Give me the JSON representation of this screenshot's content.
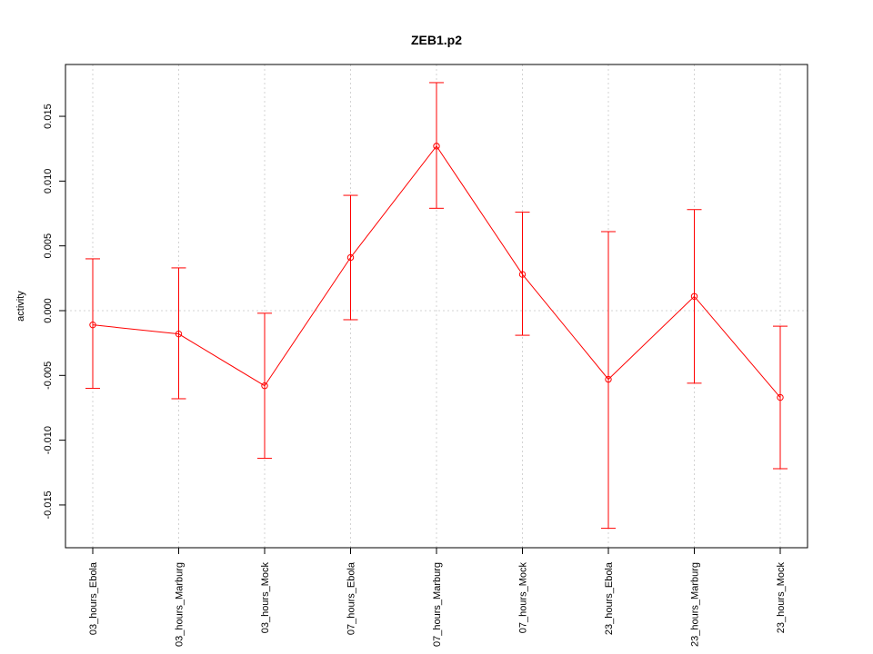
{
  "chart_data": {
    "type": "line",
    "title": "ZEB1.p2",
    "xlabel": "",
    "ylabel": "activity",
    "categories": [
      "03_hours_Ebola",
      "03_hours_Marburg",
      "03_hours_Mock",
      "07_hours_Ebola",
      "07_hours_Marburg",
      "07_hours_Mock",
      "23_hours_Ebola",
      "23_hours_Marburg",
      "23_hours_Mock"
    ],
    "series": [
      {
        "values": [
          -0.0011,
          -0.0018,
          -0.0058,
          0.0041,
          0.0127,
          0.0028,
          -0.0053,
          0.0011,
          -0.0067
        ],
        "lower": [
          -0.006,
          -0.0068,
          -0.0114,
          -0.0007,
          0.0079,
          -0.0019,
          -0.0168,
          -0.0056,
          -0.0122
        ],
        "upper": [
          0.004,
          0.0033,
          -0.0002,
          0.0089,
          0.0176,
          0.0076,
          0.0061,
          0.0078,
          -0.0012
        ]
      }
    ],
    "ylim": [
      -0.0183,
      0.019
    ],
    "yticks": [
      -0.015,
      -0.01,
      -0.005,
      0.0,
      0.005,
      0.01,
      0.015
    ],
    "ytick_labels": [
      "-0.015",
      "-0.010",
      "-0.005",
      "0.000",
      "0.005",
      "0.010",
      "0.015"
    ],
    "grid": true,
    "colors": {
      "series": "#ff0000",
      "grid": "#d3d3d3",
      "axis": "#000000"
    }
  }
}
